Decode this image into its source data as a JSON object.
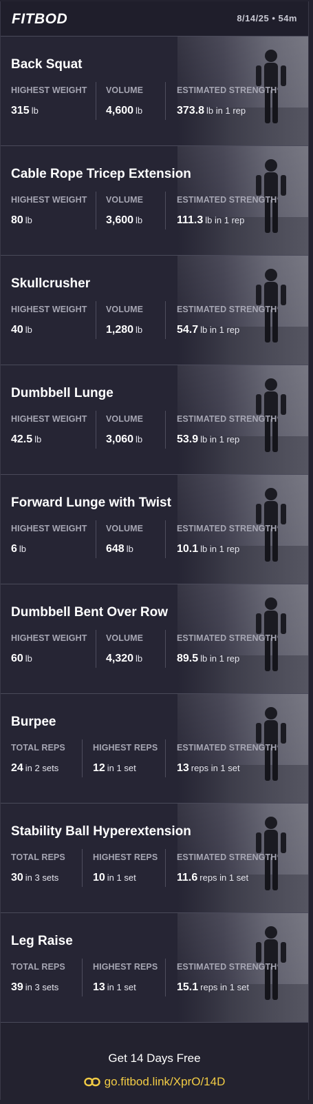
{
  "header": {
    "logo": "FITBOD",
    "meta": "8/14/25 • 54m"
  },
  "exercises": [
    {
      "name": "Back Squat",
      "stats": [
        {
          "label": "HIGHEST WEIGHT",
          "value": "315",
          "unit": "lb"
        },
        {
          "label": "VOLUME",
          "value": "4,600",
          "unit": "lb"
        },
        {
          "label": "ESTIMATED STRENGTH",
          "value": "373.8",
          "unit": "lb in 1 rep"
        }
      ]
    },
    {
      "name": "Cable Rope Tricep Extension",
      "stats": [
        {
          "label": "HIGHEST WEIGHT",
          "value": "80",
          "unit": "lb"
        },
        {
          "label": "VOLUME",
          "value": "3,600",
          "unit": "lb"
        },
        {
          "label": "ESTIMATED STRENGTH",
          "value": "111.3",
          "unit": "lb in 1 rep"
        }
      ]
    },
    {
      "name": "Skullcrusher",
      "stats": [
        {
          "label": "HIGHEST WEIGHT",
          "value": "40",
          "unit": "lb"
        },
        {
          "label": "VOLUME",
          "value": "1,280",
          "unit": "lb"
        },
        {
          "label": "ESTIMATED STRENGTH",
          "value": "54.7",
          "unit": "lb in 1 rep"
        }
      ]
    },
    {
      "name": "Dumbbell Lunge",
      "stats": [
        {
          "label": "HIGHEST WEIGHT",
          "value": "42.5",
          "unit": "lb"
        },
        {
          "label": "VOLUME",
          "value": "3,060",
          "unit": "lb"
        },
        {
          "label": "ESTIMATED STRENGTH",
          "value": "53.9",
          "unit": "lb in 1 rep"
        }
      ]
    },
    {
      "name": "Forward Lunge with Twist",
      "stats": [
        {
          "label": "HIGHEST WEIGHT",
          "value": "6",
          "unit": "lb"
        },
        {
          "label": "VOLUME",
          "value": "648",
          "unit": "lb"
        },
        {
          "label": "ESTIMATED STRENGTH",
          "value": "10.1",
          "unit": "lb in 1 rep"
        }
      ]
    },
    {
      "name": "Dumbbell Bent Over Row",
      "stats": [
        {
          "label": "HIGHEST WEIGHT",
          "value": "60",
          "unit": "lb"
        },
        {
          "label": "VOLUME",
          "value": "4,320",
          "unit": "lb"
        },
        {
          "label": "ESTIMATED STRENGTH",
          "value": "89.5",
          "unit": "lb in 1 rep"
        }
      ]
    },
    {
      "name": "Burpee",
      "stats": [
        {
          "label": "TOTAL REPS",
          "value": "24",
          "unit": "in 2 sets"
        },
        {
          "label": "HIGHEST REPS",
          "value": "12",
          "unit": "in 1 set"
        },
        {
          "label": "ESTIMATED STRENGTH",
          "value": "13",
          "unit": "reps in 1 set"
        }
      ]
    },
    {
      "name": "Stability Ball Hyperextension",
      "stats": [
        {
          "label": "TOTAL REPS",
          "value": "30",
          "unit": "in 3 sets"
        },
        {
          "label": "HIGHEST REPS",
          "value": "10",
          "unit": "in 1 set"
        },
        {
          "label": "ESTIMATED STRENGTH",
          "value": "11.6",
          "unit": "reps in 1 set"
        }
      ]
    },
    {
      "name": "Leg Raise",
      "stats": [
        {
          "label": "TOTAL REPS",
          "value": "39",
          "unit": "in 3 sets"
        },
        {
          "label": "HIGHEST REPS",
          "value": "13",
          "unit": "in 1 set"
        },
        {
          "label": "ESTIMATED STRENGTH",
          "value": "15.1",
          "unit": "reps in 1 set"
        }
      ]
    }
  ],
  "footer": {
    "cta": "Get 14 Days Free",
    "link": "go.fitbod.link/XprO/14D",
    "link_icon": "link-icon",
    "accent": "#f2cc45"
  }
}
